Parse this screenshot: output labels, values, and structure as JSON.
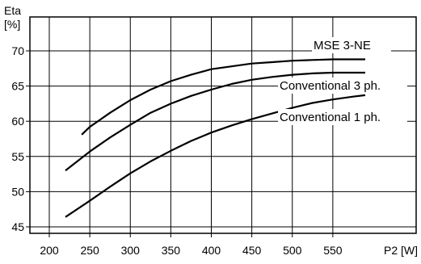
{
  "chart_data": {
    "type": "line",
    "title": "",
    "xlabel": "P2 [W]",
    "ylabel_line1": "Eta",
    "ylabel_line2": "[%]",
    "xlim": [
      200,
      600
    ],
    "ylim": [
      45,
      72
    ],
    "x_ticks": [
      200,
      250,
      300,
      350,
      400,
      450,
      500,
      550
    ],
    "y_ticks": [
      45,
      50,
      55,
      60,
      65,
      70
    ],
    "grid": true,
    "legend": "labels next to curves",
    "series": [
      {
        "name": "MSE 3-NE",
        "x": [
          240,
          250,
          275,
          300,
          325,
          350,
          375,
          400,
          425,
          450,
          475,
          500,
          525,
          550,
          575,
          590
        ],
        "y": [
          58.1,
          59.2,
          61.2,
          63.0,
          64.5,
          65.7,
          66.6,
          67.4,
          67.8,
          68.2,
          68.4,
          68.6,
          68.7,
          68.8,
          68.8,
          68.8
        ]
      },
      {
        "name": "Conventional 3 ph.",
        "x": [
          220,
          250,
          275,
          300,
          325,
          350,
          375,
          400,
          425,
          450,
          475,
          500,
          525,
          550,
          575,
          590
        ],
        "y": [
          53.0,
          55.7,
          57.7,
          59.5,
          61.2,
          62.5,
          63.6,
          64.5,
          65.3,
          65.9,
          66.3,
          66.6,
          66.8,
          66.9,
          66.9,
          66.9
        ]
      },
      {
        "name": "Conventional 1 ph.",
        "x": [
          220,
          250,
          275,
          300,
          325,
          350,
          375,
          400,
          425,
          450,
          475,
          500,
          525,
          550,
          575,
          590
        ],
        "y": [
          46.4,
          48.7,
          50.7,
          52.6,
          54.3,
          55.8,
          57.2,
          58.4,
          59.4,
          60.3,
          61.1,
          61.9,
          62.6,
          63.1,
          63.5,
          63.7
        ]
      }
    ]
  }
}
